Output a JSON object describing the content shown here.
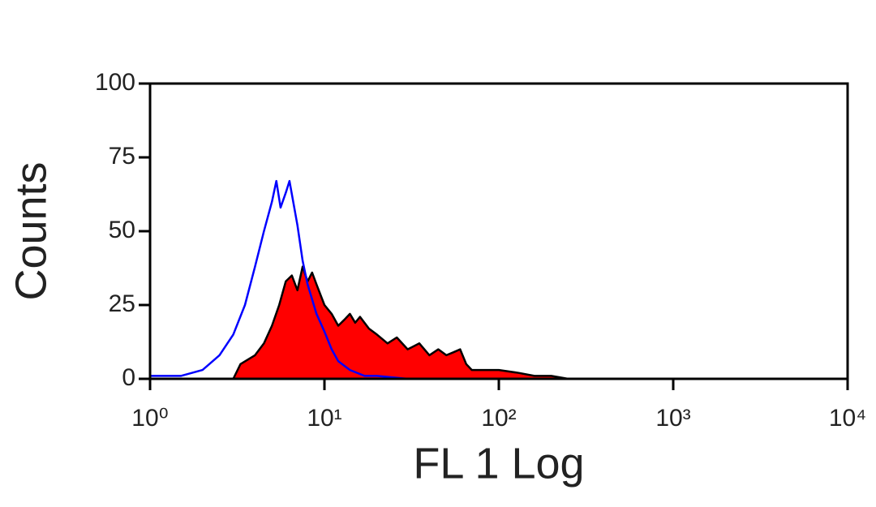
{
  "chart_data": {
    "type": "area",
    "x_label": "FL 1 Log",
    "y_label": "Counts",
    "log_x": true,
    "xlim": [
      1,
      10000
    ],
    "xticks": [
      {
        "value": 1,
        "label": "10⁰"
      },
      {
        "value": 10,
        "label": "10¹"
      },
      {
        "value": 100,
        "label": "10²"
      },
      {
        "value": 1000,
        "label": "10³"
      },
      {
        "value": 10000,
        "label": "10⁴"
      }
    ],
    "ylim": [
      0,
      100
    ],
    "yticks": [
      0,
      25,
      50,
      75,
      100
    ],
    "series": [
      {
        "color": "#ff0000",
        "edge_color": "#000000",
        "fill": true,
        "x": [
          3,
          3.3,
          4,
          4.5,
          5,
          5.5,
          6,
          6.5,
          7,
          7.5,
          8,
          8.5,
          9,
          10,
          11,
          12,
          13,
          14,
          15,
          16,
          18,
          20,
          23,
          26,
          30,
          35,
          40,
          45,
          50,
          55,
          60,
          65,
          70,
          80,
          100,
          130,
          160,
          200,
          250
        ],
        "values": [
          0,
          5,
          8,
          12,
          18,
          25,
          33,
          35,
          30,
          38,
          33,
          36,
          32,
          25,
          22,
          18,
          20,
          22,
          19,
          21,
          17,
          15,
          12,
          14,
          10,
          12,
          8,
          10,
          8,
          9,
          10,
          5,
          3,
          3,
          3,
          2,
          1,
          1,
          0
        ]
      },
      {
        "color": "#0000ff",
        "fill": false,
        "x": [
          1,
          1.5,
          2,
          2.5,
          3,
          3.5,
          4,
          4.5,
          5,
          5.3,
          5.6,
          6,
          6.3,
          7,
          7.5,
          8,
          9,
          10,
          11,
          12,
          14,
          17,
          20,
          30,
          50,
          100
        ],
        "values": [
          1,
          1,
          3,
          8,
          15,
          25,
          38,
          50,
          60,
          67,
          58,
          63,
          67,
          52,
          40,
          32,
          22,
          16,
          10,
          6,
          3,
          1,
          1,
          0,
          0,
          0
        ]
      }
    ]
  }
}
